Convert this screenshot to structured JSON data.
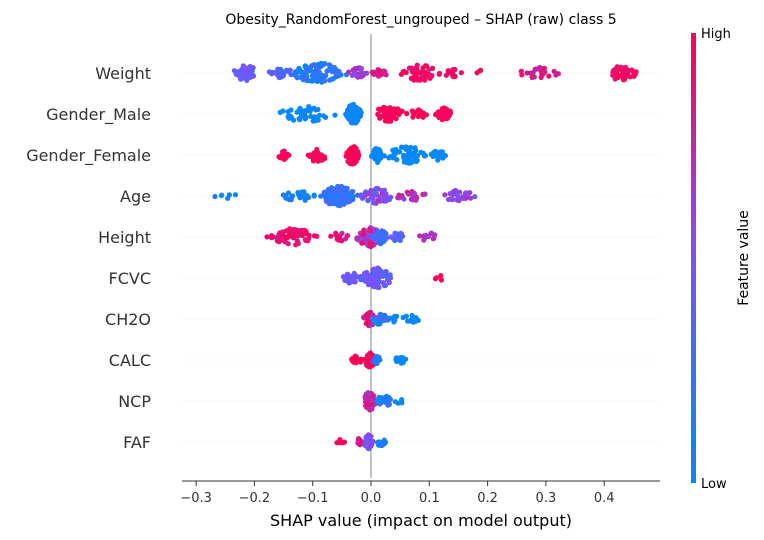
{
  "chart_data": {
    "type": "scatter",
    "subtype": "shap-beeswarm",
    "title": "Obesity_RandomForest_ungrouped – SHAP (raw) class 5",
    "xlabel": "SHAP value (impact on model output)",
    "ylabel": "",
    "xlim": [
      -0.33,
      0.495
    ],
    "xticks": [
      -0.3,
      -0.2,
      -0.1,
      0.0,
      0.1,
      0.2,
      0.3,
      0.4
    ],
    "xtick_labels": [
      "−0.3",
      "−0.2",
      "−0.1",
      "0.0",
      "0.1",
      "0.2",
      "0.3",
      "0.4"
    ],
    "features": [
      "Weight",
      "Gender_Male",
      "Gender_Female",
      "Age",
      "Height",
      "FCVC",
      "CH2O",
      "CALC",
      "NCP",
      "FAF"
    ],
    "colorbar": {
      "label": "Feature value",
      "high_label": "High",
      "low_label": "Low",
      "low_color": "#008afb",
      "mid_color": "#7c52ff",
      "high_color": "#ff0051"
    },
    "series": [
      {
        "feature": "Weight",
        "groups": [
          {
            "x_range": [
              -0.24,
              -0.19
            ],
            "n": 45,
            "feature_value": [
              0.35,
              0.5
            ]
          },
          {
            "x_range": [
              -0.18,
              -0.13
            ],
            "n": 25,
            "feature_value": [
              0.25,
              0.4
            ]
          },
          {
            "x_range": [
              -0.14,
              -0.04
            ],
            "n": 110,
            "feature_value": [
              0.0,
              0.3
            ]
          },
          {
            "x_range": [
              -0.04,
              0.0
            ],
            "n": 25,
            "feature_value": [
              0.55,
              0.8
            ]
          },
          {
            "x_range": [
              0.0,
              0.03
            ],
            "n": 18,
            "feature_value": [
              0.75,
              0.95
            ]
          },
          {
            "x_range": [
              0.05,
              0.12
            ],
            "n": 50,
            "feature_value": [
              0.88,
              1.0
            ]
          },
          {
            "x_range": [
              0.12,
              0.16
            ],
            "n": 14,
            "feature_value": [
              0.85,
              1.0
            ]
          },
          {
            "x_range": [
              0.18,
              0.2
            ],
            "n": 3,
            "feature_value": [
              0.9,
              1.0
            ]
          },
          {
            "x_range": [
              0.25,
              0.33
            ],
            "n": 28,
            "feature_value": [
              0.75,
              0.95
            ]
          },
          {
            "x_range": [
              0.4,
              0.46
            ],
            "n": 40,
            "feature_value": [
              0.88,
              1.0
            ]
          }
        ]
      },
      {
        "feature": "Gender_Male",
        "groups": [
          {
            "x_range": [
              -0.17,
              -0.05
            ],
            "n": 45,
            "feature_value": [
              0.0,
              0.05
            ]
          },
          {
            "x_range": [
              -0.045,
              -0.015
            ],
            "n": 70,
            "feature_value": [
              0.0,
              0.08
            ]
          },
          {
            "x_range": [
              0.0,
              0.06
            ],
            "n": 45,
            "feature_value": [
              0.95,
              1.0
            ]
          },
          {
            "x_range": [
              0.06,
              0.1
            ],
            "n": 15,
            "feature_value": [
              0.95,
              1.0
            ]
          },
          {
            "x_range": [
              0.11,
              0.14
            ],
            "n": 35,
            "feature_value": [
              0.95,
              1.0
            ]
          }
        ]
      },
      {
        "feature": "Gender_Female",
        "groups": [
          {
            "x_range": [
              -0.16,
              -0.14
            ],
            "n": 20,
            "feature_value": [
              0.95,
              1.0
            ]
          },
          {
            "x_range": [
              -0.12,
              -0.07
            ],
            "n": 35,
            "feature_value": [
              0.95,
              1.0
            ]
          },
          {
            "x_range": [
              -0.045,
              -0.02
            ],
            "n": 65,
            "feature_value": [
              0.95,
              1.0
            ]
          },
          {
            "x_range": [
              0.0,
              0.02
            ],
            "n": 45,
            "feature_value": [
              0.0,
              0.05
            ]
          },
          {
            "x_range": [
              0.02,
              0.1
            ],
            "n": 55,
            "feature_value": [
              0.0,
              0.05
            ]
          },
          {
            "x_range": [
              0.1,
              0.13
            ],
            "n": 25,
            "feature_value": [
              0.0,
              0.05
            ]
          }
        ]
      },
      {
        "feature": "Age",
        "groups": [
          {
            "x_range": [
              -0.28,
              -0.22
            ],
            "n": 6,
            "feature_value": [
              0.0,
              0.1
            ]
          },
          {
            "x_range": [
              -0.16,
              -0.09
            ],
            "n": 25,
            "feature_value": [
              0.0,
              0.2
            ]
          },
          {
            "x_range": [
              -0.09,
              -0.02
            ],
            "n": 120,
            "feature_value": [
              0.05,
              0.35
            ]
          },
          {
            "x_range": [
              -0.02,
              0.04
            ],
            "n": 45,
            "feature_value": [
              0.3,
              0.75
            ]
          },
          {
            "x_range": [
              0.04,
              0.1
            ],
            "n": 20,
            "feature_value": [
              0.6,
              0.9
            ]
          },
          {
            "x_range": [
              0.12,
              0.18
            ],
            "n": 30,
            "feature_value": [
              0.45,
              0.7
            ]
          }
        ]
      },
      {
        "feature": "Height",
        "groups": [
          {
            "x_range": [
              -0.18,
              -0.09
            ],
            "n": 60,
            "feature_value": [
              0.85,
              1.0
            ]
          },
          {
            "x_range": [
              -0.08,
              -0.03
            ],
            "n": 14,
            "feature_value": [
              0.75,
              0.95
            ]
          },
          {
            "x_range": [
              -0.025,
              0.02
            ],
            "n": 80,
            "feature_value": [
              0.45,
              0.95
            ]
          },
          {
            "x_range": [
              0.0,
              0.03
            ],
            "n": 40,
            "feature_value": [
              0.15,
              0.35
            ]
          },
          {
            "x_range": [
              0.03,
              0.06
            ],
            "n": 18,
            "feature_value": [
              0.2,
              0.5
            ]
          },
          {
            "x_range": [
              0.08,
              0.12
            ],
            "n": 14,
            "feature_value": [
              0.6,
              0.75
            ]
          }
        ]
      },
      {
        "feature": "FCVC",
        "groups": [
          {
            "x_range": [
              -0.05,
              -0.02
            ],
            "n": 30,
            "feature_value": [
              0.35,
              0.5
            ]
          },
          {
            "x_range": [
              -0.02,
              0.04
            ],
            "n": 80,
            "feature_value": [
              0.3,
              0.55
            ]
          },
          {
            "x_range": [
              0.1,
              0.13
            ],
            "n": 4,
            "feature_value": [
              0.95,
              1.0
            ]
          }
        ]
      },
      {
        "feature": "CH2O",
        "groups": [
          {
            "x_range": [
              -0.015,
              0.01
            ],
            "n": 45,
            "feature_value": [
              0.7,
              1.0
            ]
          },
          {
            "x_range": [
              0.0,
              0.03
            ],
            "n": 30,
            "feature_value": [
              0.0,
              0.3
            ]
          },
          {
            "x_range": [
              0.03,
              0.05
            ],
            "n": 6,
            "feature_value": [
              0.0,
              0.1
            ]
          },
          {
            "x_range": [
              0.05,
              0.09
            ],
            "n": 12,
            "feature_value": [
              0.0,
              0.05
            ]
          }
        ]
      },
      {
        "feature": "CALC",
        "groups": [
          {
            "x_range": [
              -0.035,
              -0.015
            ],
            "n": 14,
            "feature_value": [
              0.95,
              1.0
            ]
          },
          {
            "x_range": [
              -0.015,
              0.01
            ],
            "n": 45,
            "feature_value": [
              0.9,
              1.0
            ]
          },
          {
            "x_range": [
              0.0,
              0.02
            ],
            "n": 15,
            "feature_value": [
              0.05,
              0.2
            ]
          },
          {
            "x_range": [
              0.035,
              0.07
            ],
            "n": 14,
            "feature_value": [
              0.0,
              0.05
            ]
          }
        ]
      },
      {
        "feature": "NCP",
        "groups": [
          {
            "x_range": [
              -0.015,
              0.01
            ],
            "n": 60,
            "feature_value": [
              0.6,
              1.0
            ]
          },
          {
            "x_range": [
              0.005,
              0.04
            ],
            "n": 25,
            "feature_value": [
              0.0,
              0.3
            ]
          },
          {
            "x_range": [
              0.04,
              0.06
            ],
            "n": 4,
            "feature_value": [
              0.0,
              0.05
            ]
          }
        ]
      },
      {
        "feature": "FAF",
        "groups": [
          {
            "x_range": [
              -0.06,
              -0.04
            ],
            "n": 5,
            "feature_value": [
              0.9,
              1.0
            ]
          },
          {
            "x_range": [
              -0.03,
              -0.01
            ],
            "n": 12,
            "feature_value": [
              0.75,
              0.95
            ]
          },
          {
            "x_range": [
              -0.012,
              0.005
            ],
            "n": 45,
            "feature_value": [
              0.3,
              0.7
            ]
          },
          {
            "x_range": [
              0.005,
              0.03
            ],
            "n": 14,
            "feature_value": [
              0.0,
              0.2
            ]
          }
        ]
      }
    ]
  }
}
